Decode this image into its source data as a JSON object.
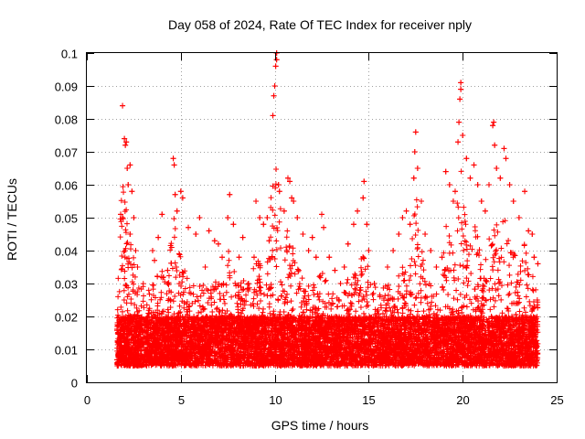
{
  "chart_data": {
    "type": "scatter",
    "title": "Day 058 of 2024, Rate Of TEC Index for receiver nply",
    "xlabel": "GPS time / hours",
    "ylabel": "ROTI / TECUs",
    "xlim": [
      0,
      25
    ],
    "ylim": [
      0,
      0.1
    ],
    "xticks": [
      0,
      5,
      10,
      15,
      20,
      25
    ],
    "xtick_labels": [
      "0",
      "5",
      "10",
      "15",
      "20",
      "25"
    ],
    "yticks": [
      0,
      0.01,
      0.02,
      0.03,
      0.04,
      0.05,
      0.06,
      0.07,
      0.08,
      0.09,
      0.1
    ],
    "ytick_labels": [
      "0",
      "0.01",
      "0.02",
      "0.03",
      "0.04",
      "0.05",
      "0.06",
      "0.07",
      "0.08",
      "0.09",
      "0.1"
    ],
    "grid": true,
    "marker": "plus",
    "series_color": "#ff0000",
    "data_time_range": [
      1.6,
      24.0
    ],
    "baseline_range": [
      0.005,
      0.02
    ],
    "series": [
      {
        "name": "ROTI",
        "points": [
          [
            1.9,
            0.084
          ],
          [
            2.0,
            0.074
          ],
          [
            2.05,
            0.072
          ],
          [
            2.1,
            0.073
          ],
          [
            2.3,
            0.066
          ],
          [
            2.15,
            0.065
          ],
          [
            2.2,
            0.06
          ],
          [
            2.4,
            0.058
          ],
          [
            1.8,
            0.051
          ],
          [
            1.9,
            0.05
          ],
          [
            2.5,
            0.05
          ],
          [
            2.3,
            0.045
          ],
          [
            2.6,
            0.04
          ],
          [
            2.7,
            0.035
          ],
          [
            3.5,
            0.04
          ],
          [
            3.6,
            0.037
          ],
          [
            3.8,
            0.044
          ],
          [
            4.0,
            0.051
          ],
          [
            4.3,
            0.034
          ],
          [
            4.6,
            0.068
          ],
          [
            4.65,
            0.066
          ],
          [
            4.7,
            0.057
          ],
          [
            4.8,
            0.052
          ],
          [
            5.0,
            0.058
          ],
          [
            5.1,
            0.056
          ],
          [
            5.4,
            0.047
          ],
          [
            5.8,
            0.045
          ],
          [
            6.0,
            0.05
          ],
          [
            6.3,
            0.035
          ],
          [
            6.5,
            0.046
          ],
          [
            6.8,
            0.043
          ],
          [
            7.0,
            0.042
          ],
          [
            7.2,
            0.038
          ],
          [
            7.5,
            0.05
          ],
          [
            7.6,
            0.057
          ],
          [
            7.8,
            0.048
          ],
          [
            8.1,
            0.038
          ],
          [
            8.3,
            0.044
          ],
          [
            8.6,
            0.03
          ],
          [
            8.9,
            0.038
          ],
          [
            9.0,
            0.055
          ],
          [
            9.2,
            0.05
          ],
          [
            9.4,
            0.048
          ],
          [
            9.6,
            0.05
          ],
          [
            9.7,
            0.043
          ],
          [
            9.9,
            0.081
          ],
          [
            9.95,
            0.087
          ],
          [
            10.0,
            0.09
          ],
          [
            10.05,
            0.096
          ],
          [
            10.1,
            0.098
          ],
          [
            10.1,
            0.1
          ],
          [
            10.2,
            0.06
          ],
          [
            10.25,
            0.058
          ],
          [
            10.5,
            0.052
          ],
          [
            10.7,
            0.062
          ],
          [
            10.8,
            0.061
          ],
          [
            10.9,
            0.056
          ],
          [
            11.0,
            0.055
          ],
          [
            11.2,
            0.05
          ],
          [
            11.5,
            0.045
          ],
          [
            11.8,
            0.04
          ],
          [
            12.0,
            0.044
          ],
          [
            12.2,
            0.038
          ],
          [
            12.5,
            0.051
          ],
          [
            12.6,
            0.047
          ],
          [
            12.9,
            0.038
          ],
          [
            13.2,
            0.034
          ],
          [
            13.5,
            0.03
          ],
          [
            13.7,
            0.035
          ],
          [
            13.9,
            0.042
          ],
          [
            14.2,
            0.048
          ],
          [
            14.4,
            0.052
          ],
          [
            14.7,
            0.056
          ],
          [
            14.75,
            0.061
          ],
          [
            14.9,
            0.048
          ],
          [
            15.0,
            0.04
          ],
          [
            15.3,
            0.03
          ],
          [
            15.6,
            0.026
          ],
          [
            16.0,
            0.035
          ],
          [
            16.3,
            0.04
          ],
          [
            16.6,
            0.045
          ],
          [
            16.8,
            0.05
          ],
          [
            17.0,
            0.052
          ],
          [
            17.2,
            0.048
          ],
          [
            17.4,
            0.062
          ],
          [
            17.45,
            0.07
          ],
          [
            17.5,
            0.076
          ],
          [
            17.6,
            0.065
          ],
          [
            17.8,
            0.055
          ],
          [
            18.0,
            0.045
          ],
          [
            18.3,
            0.04
          ],
          [
            18.6,
            0.035
          ],
          [
            18.9,
            0.038
          ],
          [
            19.1,
            0.064
          ],
          [
            19.3,
            0.06
          ],
          [
            19.5,
            0.055
          ],
          [
            19.6,
            0.058
          ],
          [
            19.75,
            0.073
          ],
          [
            19.8,
            0.079
          ],
          [
            19.85,
            0.086
          ],
          [
            19.9,
            0.089
          ],
          [
            19.9,
            0.091
          ],
          [
            20.0,
            0.075
          ],
          [
            20.2,
            0.068
          ],
          [
            20.4,
            0.062
          ],
          [
            20.6,
            0.066
          ],
          [
            20.8,
            0.06
          ],
          [
            21.0,
            0.055
          ],
          [
            21.2,
            0.052
          ],
          [
            21.4,
            0.06
          ],
          [
            21.6,
            0.078
          ],
          [
            21.65,
            0.079
          ],
          [
            21.7,
            0.072
          ],
          [
            21.8,
            0.065
          ],
          [
            22.0,
            0.062
          ],
          [
            22.2,
            0.071
          ],
          [
            22.3,
            0.068
          ],
          [
            22.5,
            0.06
          ],
          [
            22.7,
            0.055
          ],
          [
            23.0,
            0.05
          ],
          [
            23.3,
            0.058
          ],
          [
            23.5,
            0.046
          ],
          [
            23.7,
            0.045
          ],
          [
            23.8,
            0.038
          ],
          [
            24.0,
            0.036
          ]
        ]
      }
    ]
  }
}
